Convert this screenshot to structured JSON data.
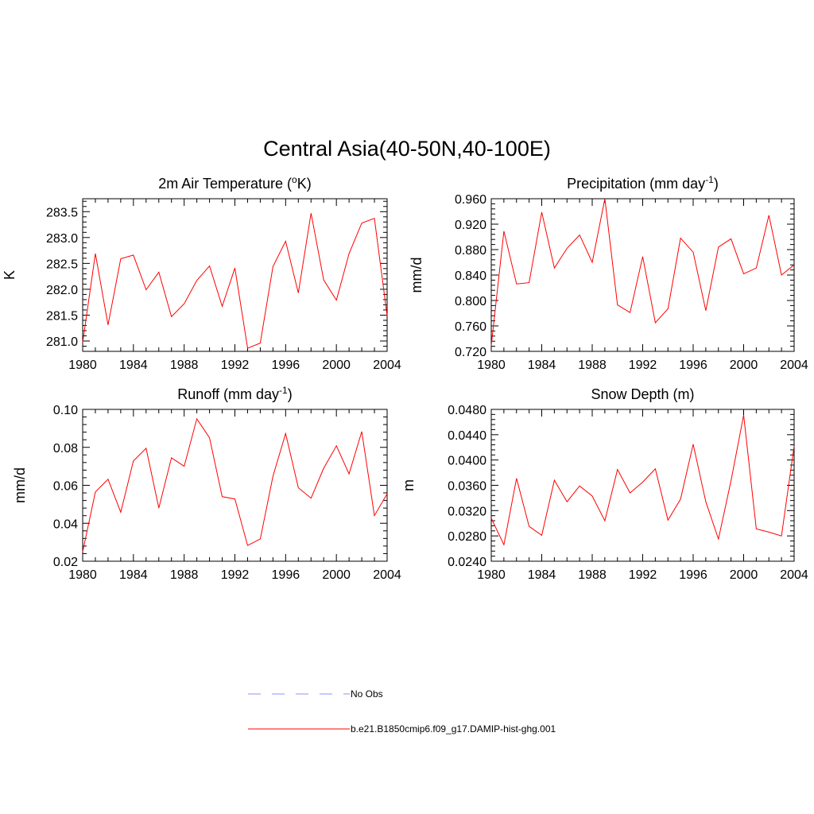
{
  "title": "Central Asia(40-50N,40-100E)",
  "colors": {
    "model": "#ff0000",
    "obs": "#a6a6ff"
  },
  "legend": [
    {
      "label": "No Obs",
      "style": "dashed",
      "color": "#a6a6ff"
    },
    {
      "label": "b.e21.B1850cmip6.f09_g17.DAMIP-hist-ghg.001",
      "style": "solid",
      "color": "#ff0000"
    }
  ],
  "chart_data": [
    {
      "type": "line",
      "title_main": "2m Air Temperature (",
      "title_sup": "o",
      "title_end": "K)",
      "ylabel": "K",
      "xlim": [
        1980,
        2004
      ],
      "ylim": [
        280.8,
        283.75
      ],
      "xticks": [
        1980,
        1984,
        1988,
        1992,
        1996,
        2000,
        2004
      ],
      "yticks": [
        281.0,
        281.5,
        282.0,
        282.5,
        283.0,
        283.5
      ],
      "ytick_labels": [
        "281.0",
        "281.5",
        "282.0",
        "282.5",
        "283.0",
        "283.5"
      ],
      "yminor": 0.1,
      "x": [
        1980,
        1981,
        1982,
        1983,
        1984,
        1985,
        1986,
        1987,
        1988,
        1989,
        1990,
        1991,
        1992,
        1993,
        1994,
        1995,
        1996,
        1997,
        1998,
        1999,
        2000,
        2001,
        2002,
        2003,
        2004
      ],
      "series": [
        {
          "values": [
            280.97,
            282.69,
            281.31,
            282.59,
            282.66,
            281.99,
            282.33,
            281.47,
            281.72,
            282.17,
            282.45,
            281.67,
            282.41,
            280.86,
            280.96,
            282.44,
            282.93,
            281.93,
            283.47,
            282.18,
            281.79,
            282.69,
            283.28,
            283.37,
            281.49
          ]
        }
      ]
    },
    {
      "type": "line",
      "title_main": "Precipitation (mm day",
      "title_sup": "-1",
      "title_end": ")",
      "ylabel": "mm/d",
      "xlim": [
        1980,
        2004
      ],
      "ylim": [
        0.72,
        0.96
      ],
      "xticks": [
        1980,
        1984,
        1988,
        1992,
        1996,
        2000,
        2004
      ],
      "yticks": [
        0.72,
        0.76,
        0.8,
        0.84,
        0.88,
        0.92,
        0.96
      ],
      "ytick_labels": [
        "0.720",
        "0.760",
        "0.800",
        "0.840",
        "0.880",
        "0.920",
        "0.960"
      ],
      "yminor": 0.008,
      "x": [
        1980,
        1981,
        1982,
        1983,
        1984,
        1985,
        1986,
        1987,
        1988,
        1989,
        1990,
        1991,
        1992,
        1993,
        1994,
        1995,
        1996,
        1997,
        1998,
        1999,
        2000,
        2001,
        2002,
        2003,
        2004
      ],
      "series": [
        {
          "values": [
            0.729,
            0.909,
            0.826,
            0.828,
            0.939,
            0.851,
            0.882,
            0.903,
            0.86,
            0.96,
            0.793,
            0.781,
            0.869,
            0.765,
            0.787,
            0.898,
            0.876,
            0.784,
            0.884,
            0.897,
            0.842,
            0.851,
            0.934,
            0.84,
            0.856
          ]
        }
      ]
    },
    {
      "type": "line",
      "title_main": "Runoff (mm day",
      "title_sup": "-1",
      "title_end": ")",
      "ylabel": "mm/d",
      "xlim": [
        1980,
        2004
      ],
      "ylim": [
        0.02,
        0.1
      ],
      "xticks": [
        1980,
        1984,
        1988,
        1992,
        1996,
        2000,
        2004
      ],
      "yticks": [
        0.02,
        0.04,
        0.06,
        0.08,
        0.1
      ],
      "ytick_labels": [
        "0.02",
        "0.04",
        "0.06",
        "0.08",
        "0.10"
      ],
      "yminor": 0.004,
      "x": [
        1980,
        1981,
        1982,
        1983,
        1984,
        1985,
        1986,
        1987,
        1988,
        1989,
        1990,
        1991,
        1992,
        1993,
        1994,
        1995,
        1996,
        1997,
        1998,
        1999,
        2000,
        2001,
        2002,
        2003,
        2004
      ],
      "series": [
        {
          "values": [
            0.025,
            0.0565,
            0.0632,
            0.0458,
            0.0728,
            0.0795,
            0.048,
            0.0745,
            0.07,
            0.095,
            0.085,
            0.054,
            0.0528,
            0.0283,
            0.0317,
            0.0648,
            0.0873,
            0.0587,
            0.0532,
            0.069,
            0.0808,
            0.066,
            0.0883,
            0.044,
            0.0555
          ]
        }
      ]
    },
    {
      "type": "line",
      "title_main": "Snow Depth (m)",
      "title_sup": "",
      "title_end": "",
      "ylabel": "m",
      "xlim": [
        1980,
        2004
      ],
      "ylim": [
        0.024,
        0.048
      ],
      "xticks": [
        1980,
        1984,
        1988,
        1992,
        1996,
        2000,
        2004
      ],
      "yticks": [
        0.024,
        0.028,
        0.032,
        0.036,
        0.04,
        0.044,
        0.048
      ],
      "ytick_labels": [
        "0.0240",
        "0.0280",
        "0.0320",
        "0.0360",
        "0.0400",
        "0.0440",
        "0.0480"
      ],
      "yminor": 0.0008,
      "x": [
        1980,
        1981,
        1982,
        1983,
        1984,
        1985,
        1986,
        1987,
        1988,
        1989,
        1990,
        1991,
        1992,
        1993,
        1994,
        1995,
        1996,
        1997,
        1998,
        1999,
        2000,
        2001,
        2002,
        2003,
        2004
      ],
      "series": [
        {
          "values": [
            0.0308,
            0.0266,
            0.0371,
            0.0295,
            0.0281,
            0.0368,
            0.0334,
            0.0359,
            0.0343,
            0.0304,
            0.0385,
            0.0348,
            0.0365,
            0.0386,
            0.0305,
            0.0338,
            0.0425,
            0.0334,
            0.0275,
            0.0367,
            0.0471,
            0.0291,
            0.0286,
            0.028,
            0.0422
          ]
        }
      ]
    }
  ]
}
